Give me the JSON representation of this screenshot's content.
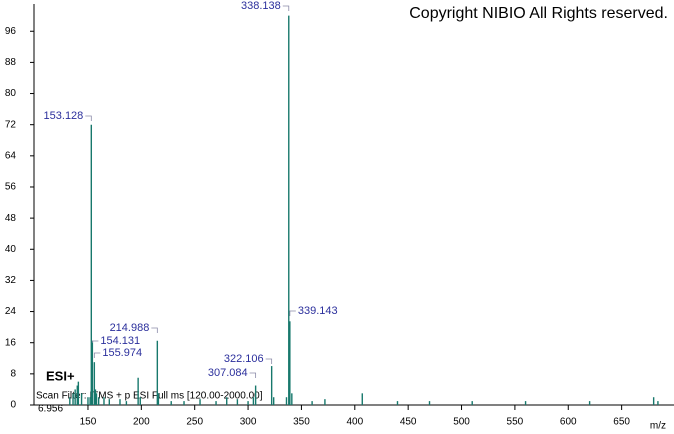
{
  "chart_data": {
    "type": "stick",
    "copyright": "Copyright NIBIO All Rights reserved.",
    "ionization": "ESI+",
    "scan_filter": "Scan Filter: ITMS + p ESI Full ms [120.00-2000.00]",
    "retention_time": "6.956",
    "x_label": "m/z",
    "color": "#17786c",
    "label_color": "#2b2f9c",
    "xlim": [
      100,
      700
    ],
    "ylim": [
      0,
      103
    ],
    "xticks": [
      150,
      200,
      250,
      300,
      350,
      400,
      450,
      500,
      550,
      600,
      650
    ],
    "yticks": [
      0,
      8,
      16,
      24,
      32,
      40,
      48,
      56,
      64,
      72,
      80,
      88,
      96
    ],
    "labeled_peaks": {
      "x": [
        153.128,
        154.131,
        155.974,
        214.988,
        307.084,
        322.106,
        338.138,
        339.143
      ],
      "values": [
        72,
        16.5,
        11,
        16.5,
        5,
        10,
        100,
        21.5
      ]
    },
    "x": [
      133,
      136,
      138,
      140,
      141,
      144,
      150,
      152,
      157,
      158,
      160,
      165,
      170,
      180,
      186,
      197,
      199,
      216,
      228,
      240,
      255,
      270,
      280,
      290,
      300,
      305,
      324,
      336,
      341,
      360,
      372,
      407,
      440,
      470,
      510,
      560,
      620,
      680,
      684
    ],
    "values": [
      2,
      3,
      4,
      5,
      6,
      3,
      2,
      2,
      4,
      3,
      2,
      2,
      1.5,
      1.5,
      1,
      7,
      2,
      3,
      1,
      1,
      1.5,
      1,
      2,
      1.5,
      1,
      2,
      2,
      2,
      3,
      1,
      1.5,
      3,
      1,
      1,
      1,
      1,
      1,
      2,
      1
    ]
  }
}
